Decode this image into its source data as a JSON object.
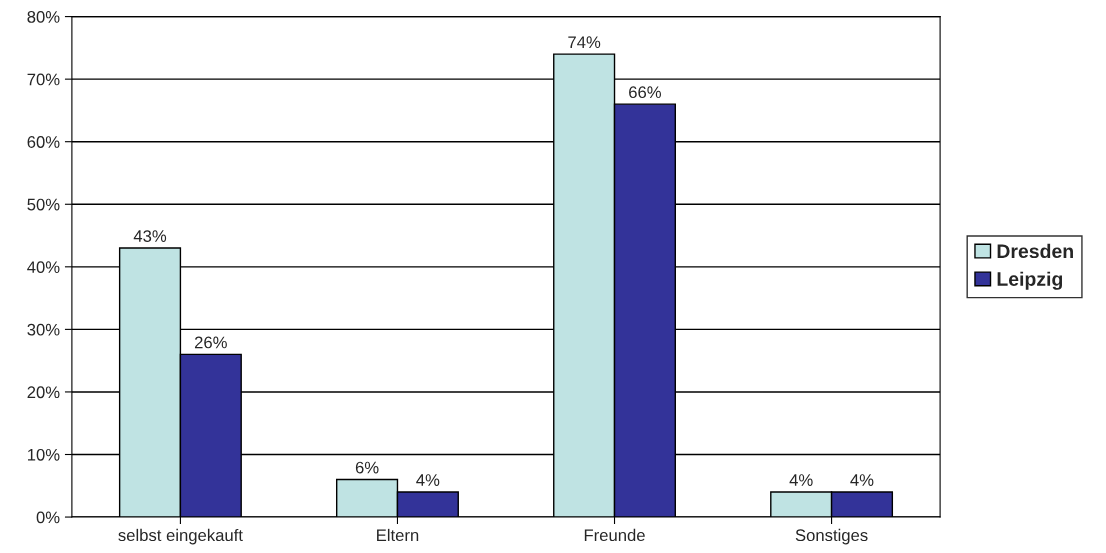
{
  "chart_data": {
    "type": "bar",
    "categories": [
      "selbst eingekauft",
      "Eltern",
      "Freunde",
      "Sonstiges"
    ],
    "series": [
      {
        "name": "Dresden",
        "color": "#bfe3e3",
        "values": [
          43,
          6,
          74,
          4
        ],
        "value_labels": [
          "43%",
          "6%",
          "74%",
          "4%"
        ]
      },
      {
        "name": "Leipzig",
        "color": "#333399",
        "values": [
          26,
          4,
          66,
          4
        ],
        "value_labels": [
          "26%",
          "4%",
          "66%",
          "4%"
        ]
      }
    ],
    "ylim": [
      0,
      80
    ],
    "yticks": [
      {
        "value": 0,
        "label": "0%"
      },
      {
        "value": 10,
        "label": "10%"
      },
      {
        "value": 20,
        "label": "20%"
      },
      {
        "value": 30,
        "label": "30%"
      },
      {
        "value": 40,
        "label": "40%"
      },
      {
        "value": 50,
        "label": "50%"
      },
      {
        "value": 60,
        "label": "60%"
      },
      {
        "value": 70,
        "label": "70%"
      },
      {
        "value": 80,
        "label": "80%"
      }
    ],
    "grid": "y",
    "legend": "right"
  }
}
